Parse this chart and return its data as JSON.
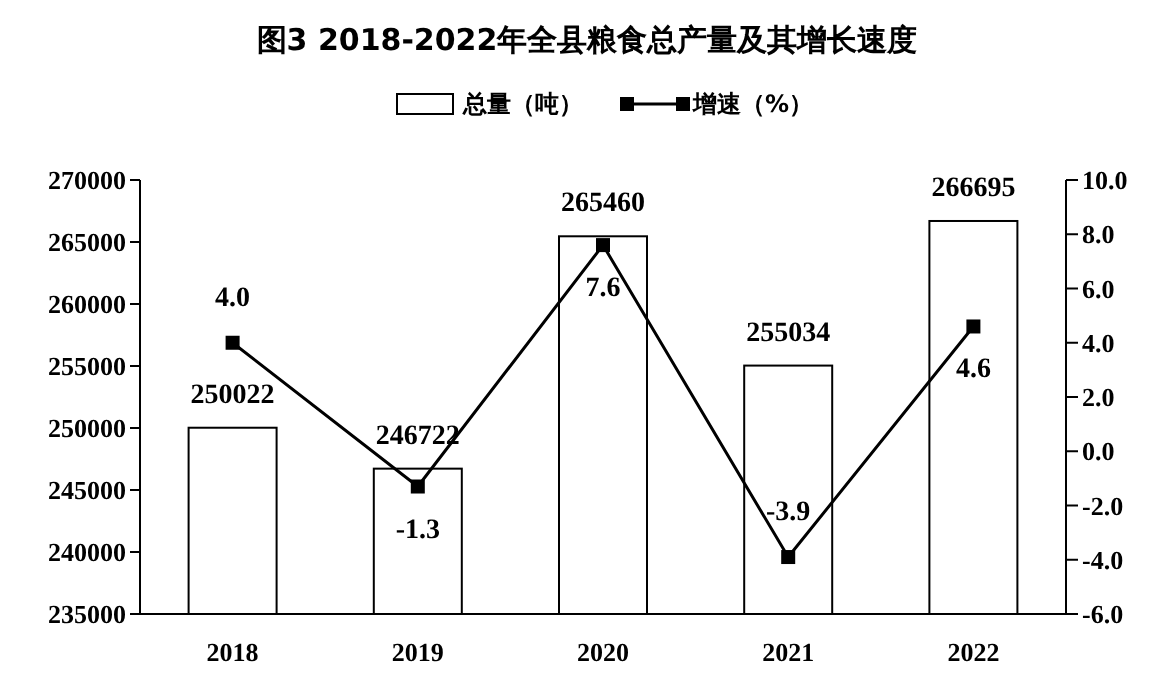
{
  "chart_data": {
    "type": "bar",
    "title": "图3 2018-2022年全县粮食总产量及其增长速度",
    "categories": [
      "2018",
      "2019",
      "2020",
      "2021",
      "2022"
    ],
    "series": [
      {
        "name": "总量（吨）",
        "color": "#ffffff",
        "values": [
          250022,
          246722,
          265460,
          255034,
          266695
        ],
        "value_labels": [
          "250022",
          "246722",
          "265460",
          "255034",
          "266695"
        ]
      },
      {
        "name": "增速（%）",
        "type": "line",
        "axis": "y2",
        "color": "#000000",
        "values": [
          4.0,
          -1.3,
          7.6,
          -3.9,
          4.6
        ],
        "value_labels": [
          "4.0",
          "-1.3",
          "7.6",
          "-3.9",
          "4.6"
        ]
      }
    ],
    "ylim": [
      235000,
      270000
    ],
    "yticks": [
      235000,
      240000,
      245000,
      250000,
      255000,
      260000,
      265000,
      270000
    ],
    "y2lim": [
      -6,
      10
    ],
    "y2ticks": [
      {
        "value": -6,
        "label": "-6.0"
      },
      {
        "value": -4,
        "label": "-4.0"
      },
      {
        "value": -2,
        "label": "-2.0"
      },
      {
        "value": 0,
        "label": "0.0"
      },
      {
        "value": 2,
        "label": "2.0"
      },
      {
        "value": 4,
        "label": "4.0"
      },
      {
        "value": 6,
        "label": "6.0"
      },
      {
        "value": 8,
        "label": "8.0"
      },
      {
        "value": 10,
        "label": "10.0"
      }
    ],
    "marker": "square",
    "line_style": "solid",
    "legend": "top",
    "grid": false
  }
}
